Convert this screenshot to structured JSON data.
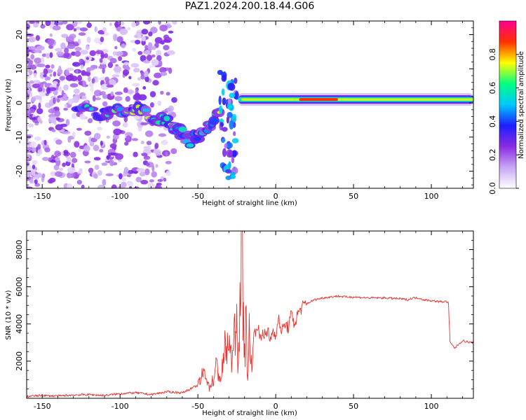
{
  "title": "PAZ1.2024.200.18.44.G06",
  "chart_data": [
    {
      "type": "heatmap",
      "xlabel": "Height of straight line (km)",
      "ylabel": "Frequency (Hz)",
      "xlim": [
        -160,
        127
      ],
      "ylim": [
        -25,
        24
      ],
      "x_ticks": [
        -150,
        -100,
        -50,
        0,
        50,
        100
      ],
      "y_ticks": [
        -20,
        -10,
        0,
        10,
        20
      ],
      "colorbar": {
        "label": "Normalized spectral amplitude",
        "range": [
          0,
          1
        ],
        "ticks": [
          0.0,
          0.2,
          0.4,
          0.6,
          0.8
        ],
        "colormap": "white-purple-blue-cyan-green-yellow-red-magenta",
        "colors": [
          "#ffffff",
          "#c9a6f5",
          "#8a2be2",
          "#1e1eff",
          "#00c8ff",
          "#00ff80",
          "#ffff00",
          "#ff3000",
          "#ff0090"
        ]
      },
      "features": [
        {
          "name": "diffuse speckle noise",
          "x_range": [
            -160,
            -90
          ],
          "freq_range": [
            -25,
            24
          ],
          "amplitude": 0.15
        },
        {
          "name": "descending signal trace",
          "points": [
            [
              -127,
              -2
            ],
            [
              -110,
              -3.5
            ],
            [
              -100,
              -2.5
            ],
            [
              -90,
              -2
            ],
            [
              -80,
              -4
            ],
            [
              -70,
              -5
            ],
            [
              -62,
              -8
            ],
            [
              -55,
              -11
            ],
            [
              -48,
              -9
            ],
            [
              -42,
              -6
            ],
            [
              -35,
              -3
            ]
          ],
          "amplitude": 0.45
        },
        {
          "name": "transition burst",
          "x_range": [
            -36,
            -25
          ],
          "freq_range": [
            -22,
            9
          ],
          "amplitude": 0.4
        },
        {
          "name": "steady carrier",
          "x_range": [
            -24,
            127
          ],
          "frequency": 1,
          "peak_x": [
            15,
            40
          ],
          "amplitude": 1.0
        }
      ]
    },
    {
      "type": "line",
      "xlabel": "Height of straight line (km)",
      "ylabel": "SNR (10 * v/v)",
      "xlim": [
        -160,
        127
      ],
      "ylim": [
        0,
        9000
      ],
      "x_ticks": [
        -150,
        -100,
        -50,
        0,
        50,
        100
      ],
      "y_ticks": [
        2000,
        4000,
        6000,
        8000
      ],
      "color": "#e8332f",
      "series": [
        {
          "x": [
            -160,
            -150,
            -140,
            -130,
            -120,
            -110,
            -100,
            -90,
            -80,
            -70,
            -60,
            -55,
            -50,
            -47,
            -45,
            -43,
            -40,
            -38,
            -35,
            -33,
            -30,
            -28,
            -27,
            -26,
            -25,
            -24,
            -23,
            -22,
            -21,
            -20,
            -19,
            -18,
            -17,
            -16,
            -15,
            -14,
            -12,
            -10,
            -8,
            -6,
            -5,
            -4,
            -2,
            0,
            2,
            4,
            6,
            8,
            10,
            12,
            15,
            18,
            20,
            25,
            30,
            35,
            40,
            45,
            50,
            60,
            70,
            80,
            85,
            88,
            90,
            92,
            95,
            100,
            105,
            110,
            111,
            112,
            115,
            118,
            120,
            125,
            127
          ],
          "y": [
            100,
            150,
            120,
            180,
            200,
            150,
            250,
            300,
            200,
            350,
            300,
            500,
            700,
            1200,
            1500,
            600,
            1000,
            1700,
            1000,
            2500,
            3000,
            1500,
            5500,
            2000,
            4000,
            1500,
            6000,
            8900,
            5000,
            2500,
            4000,
            1200,
            3500,
            1500,
            3000,
            3300,
            4000,
            3200,
            3600,
            3300,
            3700,
            3100,
            3600,
            3500,
            4200,
            3600,
            4000,
            3800,
            4500,
            4000,
            4700,
            5000,
            5100,
            5300,
            5400,
            5450,
            5500,
            5450,
            5450,
            5400,
            5400,
            5350,
            5300,
            5400,
            5400,
            5400,
            5300,
            5250,
            5200,
            5200,
            5100,
            3000,
            2700,
            2950,
            3100,
            3000,
            3000
          ]
        }
      ]
    }
  ]
}
